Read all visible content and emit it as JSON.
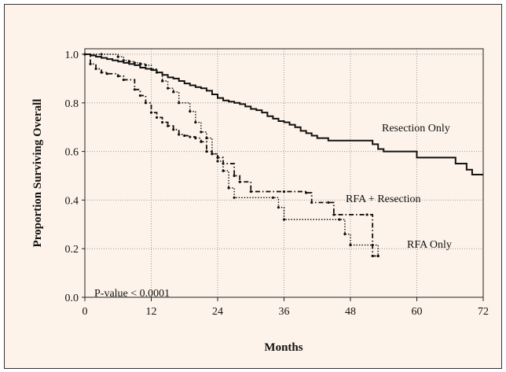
{
  "chart_data": {
    "type": "line",
    "title": "",
    "xlabel": "Months",
    "ylabel": "Proportion Surviving Overall",
    "xlim": [
      0,
      72
    ],
    "ylim": [
      0,
      1.0
    ],
    "xticks": [
      0,
      12,
      24,
      36,
      48,
      60,
      72
    ],
    "xtick_labels": [
      "0",
      "12",
      "24",
      "36",
      "48",
      "60",
      "72"
    ],
    "yticks": [
      0.0,
      0.2,
      0.4,
      0.6,
      0.8,
      1.0
    ],
    "ytick_labels": [
      "0.0",
      "0.2",
      "0.4",
      "0.6",
      "0.8",
      "1.0"
    ],
    "grid": true,
    "pvalue_text": "P-value < 0.0001",
    "series": [
      {
        "name": "Resection Only",
        "style": "solid",
        "color": "#111111",
        "points": [
          [
            0,
            1.0
          ],
          [
            1,
            0.995
          ],
          [
            2,
            0.99
          ],
          [
            3,
            0.985
          ],
          [
            4,
            0.98
          ],
          [
            5,
            0.975
          ],
          [
            6,
            0.97
          ],
          [
            7,
            0.965
          ],
          [
            8,
            0.96
          ],
          [
            9,
            0.955
          ],
          [
            10,
            0.945
          ],
          [
            11,
            0.94
          ],
          [
            12,
            0.935
          ],
          [
            13,
            0.925
          ],
          [
            14,
            0.915
          ],
          [
            15,
            0.905
          ],
          [
            16,
            0.9
          ],
          [
            17,
            0.89
          ],
          [
            18,
            0.88
          ],
          [
            19,
            0.872
          ],
          [
            20,
            0.865
          ],
          [
            21,
            0.86
          ],
          [
            22,
            0.85
          ],
          [
            23,
            0.835
          ],
          [
            24,
            0.82
          ],
          [
            25,
            0.81
          ],
          [
            26,
            0.805
          ],
          [
            27,
            0.8
          ],
          [
            28,
            0.795
          ],
          [
            29,
            0.785
          ],
          [
            30,
            0.775
          ],
          [
            31,
            0.77
          ],
          [
            32,
            0.76
          ],
          [
            33,
            0.745
          ],
          [
            34,
            0.735
          ],
          [
            35,
            0.725
          ],
          [
            36,
            0.72
          ],
          [
            37,
            0.71
          ],
          [
            38,
            0.7
          ],
          [
            39,
            0.685
          ],
          [
            40,
            0.675
          ],
          [
            41,
            0.665
          ],
          [
            42,
            0.655
          ],
          [
            44,
            0.645
          ],
          [
            52,
            0.63
          ],
          [
            53,
            0.61
          ],
          [
            54,
            0.6
          ],
          [
            60,
            0.575
          ],
          [
            67,
            0.55
          ],
          [
            69,
            0.525
          ],
          [
            70,
            0.505
          ],
          [
            72,
            0.505
          ]
        ]
      },
      {
        "name": "RFA + Resection",
        "style": "dashdot",
        "color": "#111111",
        "points": [
          [
            0,
            1.0
          ],
          [
            1,
            0.96
          ],
          [
            2,
            0.94
          ],
          [
            3,
            0.925
          ],
          [
            4,
            0.92
          ],
          [
            6,
            0.91
          ],
          [
            7,
            0.895
          ],
          [
            9,
            0.855
          ],
          [
            10,
            0.83
          ],
          [
            11,
            0.8
          ],
          [
            12,
            0.76
          ],
          [
            13,
            0.74
          ],
          [
            14,
            0.72
          ],
          [
            15,
            0.705
          ],
          [
            16,
            0.69
          ],
          [
            17,
            0.67
          ],
          [
            18,
            0.665
          ],
          [
            19,
            0.66
          ],
          [
            20,
            0.655
          ],
          [
            21,
            0.64
          ],
          [
            22,
            0.6
          ],
          [
            23,
            0.59
          ],
          [
            24,
            0.575
          ],
          [
            25,
            0.55
          ],
          [
            27,
            0.5
          ],
          [
            28,
            0.475
          ],
          [
            30,
            0.435
          ],
          [
            36,
            0.435
          ],
          [
            40,
            0.43
          ],
          [
            41,
            0.39
          ],
          [
            44,
            0.39
          ],
          [
            45,
            0.34
          ],
          [
            51,
            0.34
          ],
          [
            52,
            0.17
          ],
          [
            53,
            0.17
          ]
        ]
      },
      {
        "name": "RFA Only",
        "style": "dotted",
        "color": "#111111",
        "points": [
          [
            0,
            1.0
          ],
          [
            3,
            1.0
          ],
          [
            6,
            0.99
          ],
          [
            7,
            0.975
          ],
          [
            8,
            0.97
          ],
          [
            9,
            0.965
          ],
          [
            10,
            0.96
          ],
          [
            11,
            0.955
          ],
          [
            12,
            0.94
          ],
          [
            13,
            0.925
          ],
          [
            14,
            0.89
          ],
          [
            15,
            0.86
          ],
          [
            16,
            0.845
          ],
          [
            17,
            0.8
          ],
          [
            19,
            0.765
          ],
          [
            20,
            0.72
          ],
          [
            21,
            0.68
          ],
          [
            22,
            0.655
          ],
          [
            23,
            0.59
          ],
          [
            24,
            0.56
          ],
          [
            25,
            0.52
          ],
          [
            26,
            0.45
          ],
          [
            27,
            0.41
          ],
          [
            34,
            0.41
          ],
          [
            35,
            0.37
          ],
          [
            36,
            0.32
          ],
          [
            46,
            0.32
          ],
          [
            47,
            0.26
          ],
          [
            48,
            0.215
          ],
          [
            52,
            0.215
          ],
          [
            53,
            0.17
          ]
        ]
      }
    ],
    "labels": {
      "resection": "Resection Only",
      "rfa_resection": "RFA + Resection",
      "rfa_only": "RFA Only"
    }
  }
}
